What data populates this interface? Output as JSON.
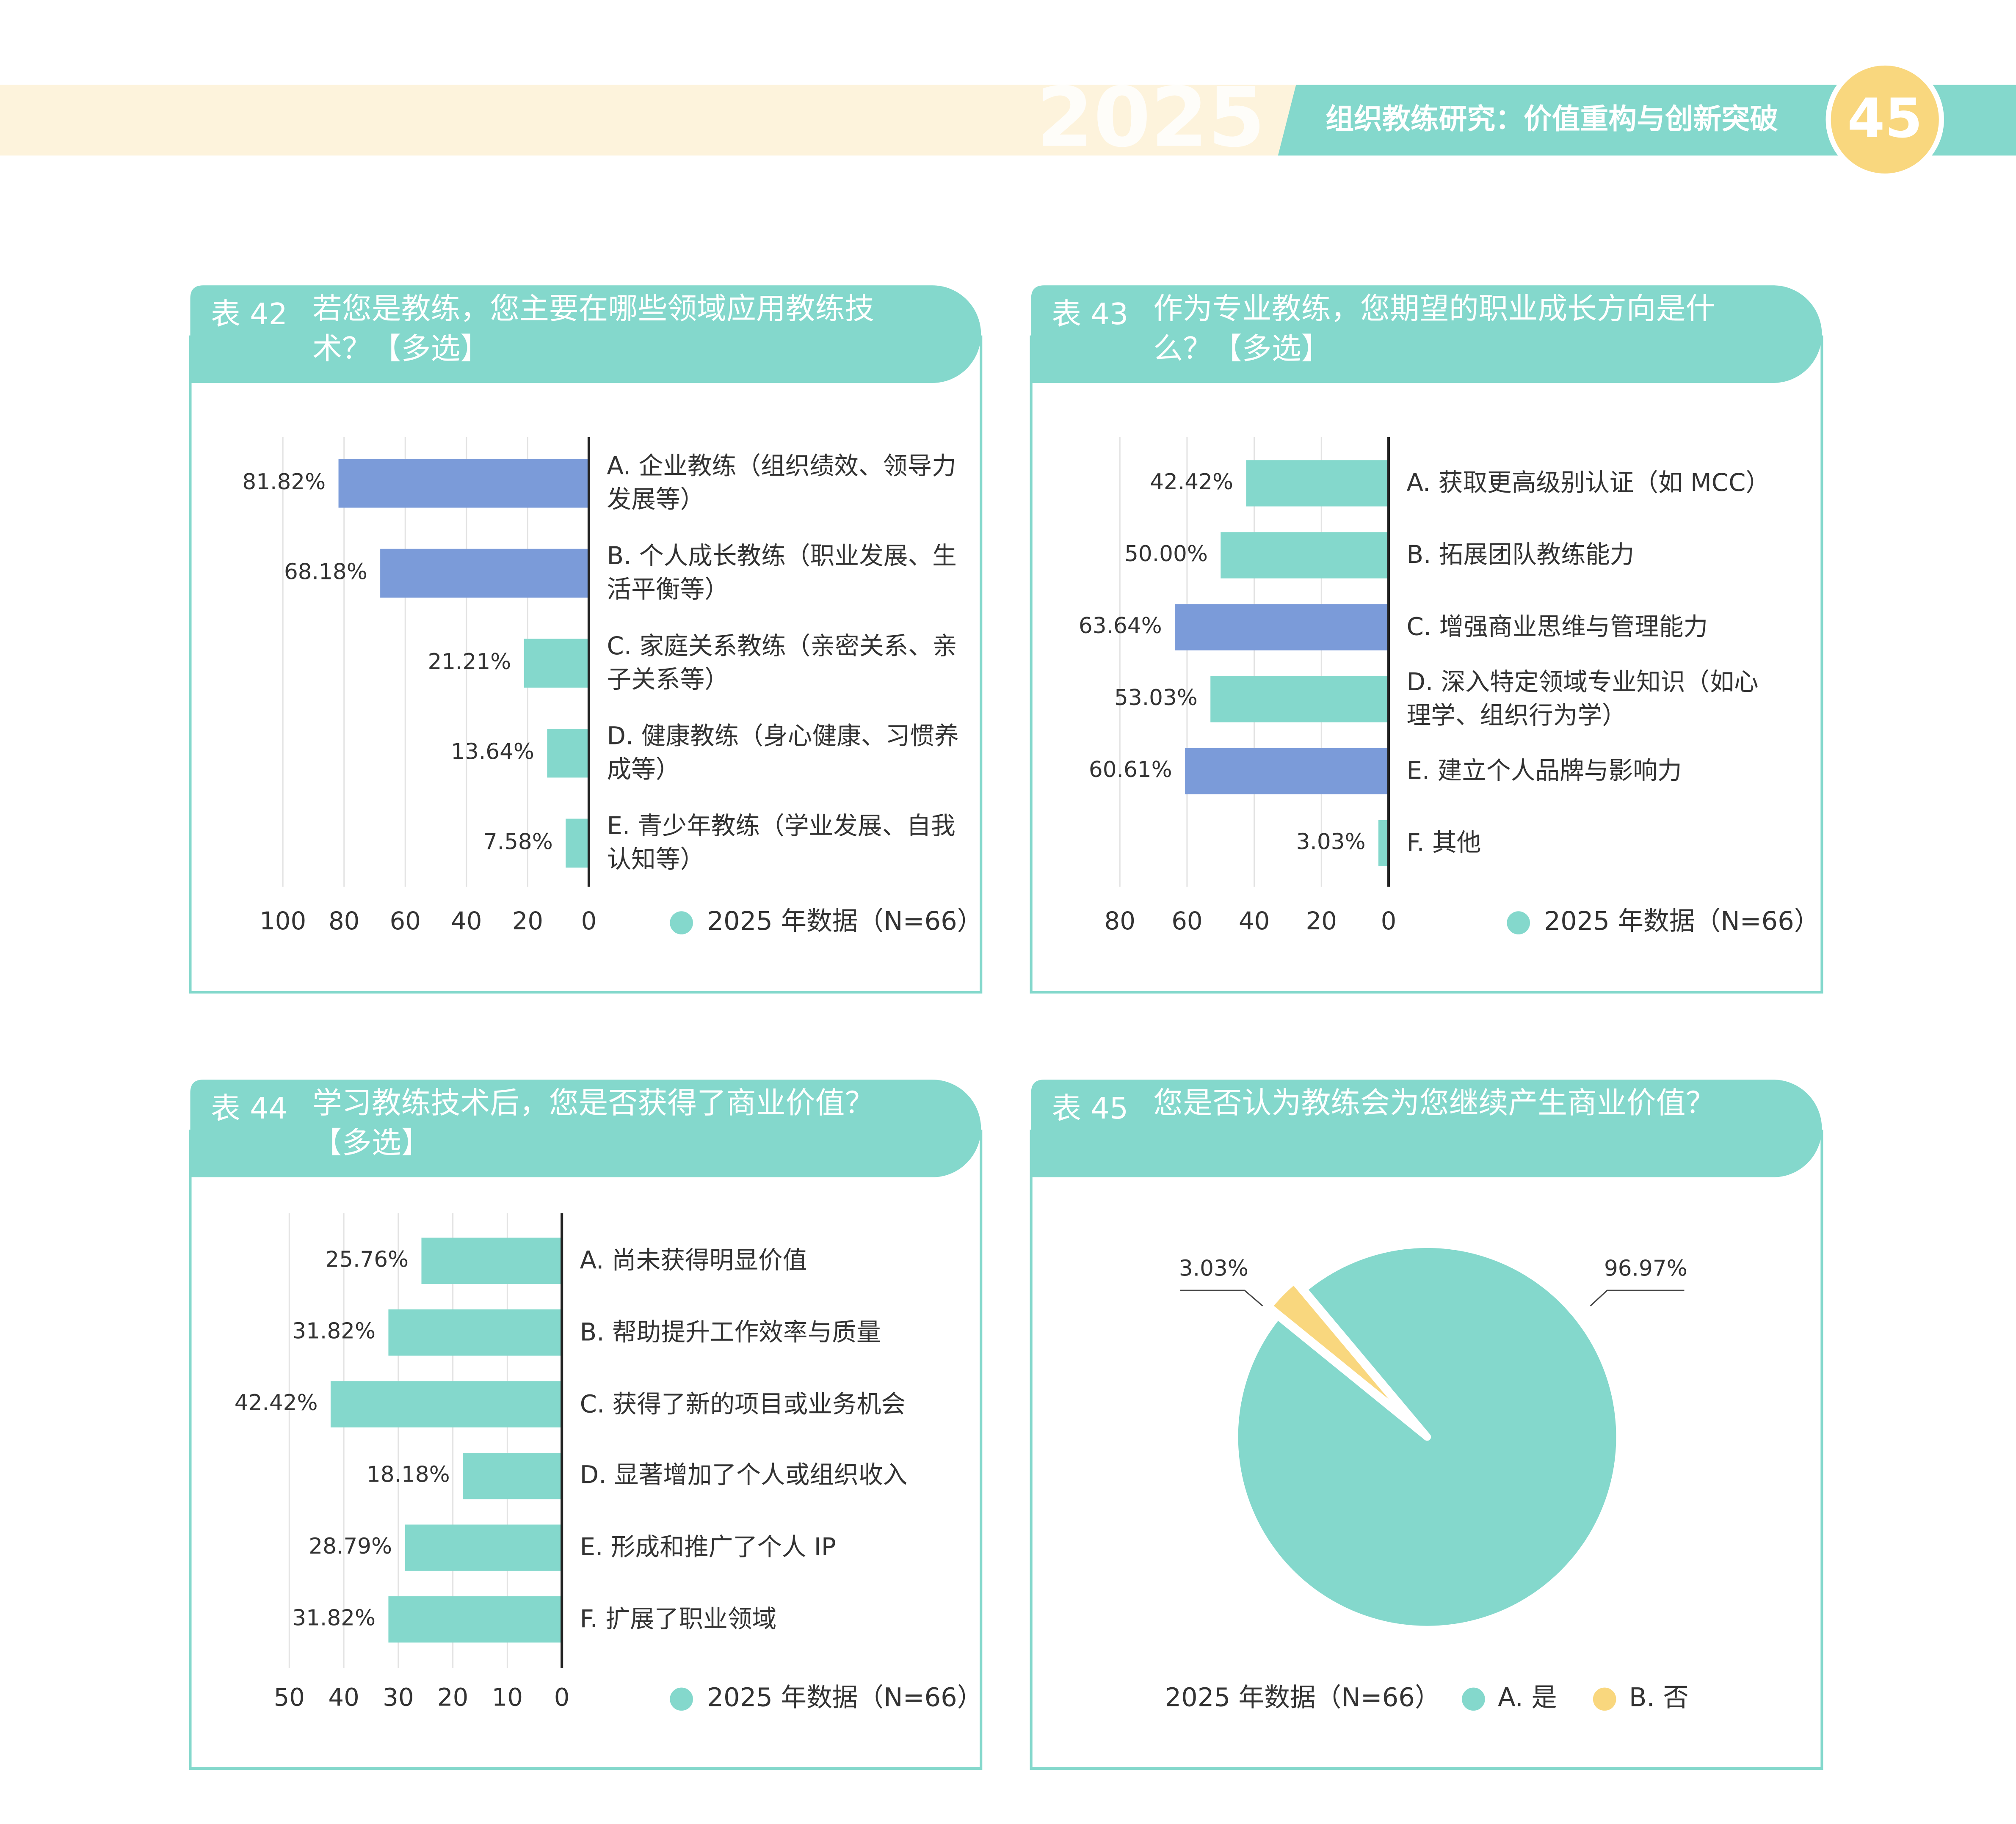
{
  "header": {
    "watermark": "2025",
    "title": "组织教练研究：价值重构与创新突破",
    "page_number": "45"
  },
  "chart_data": [
    {
      "type": "bar",
      "orientation": "horizontal",
      "number": "表 42",
      "title": "若您是教练，您主要在哪些领域应用教练技术？【多选】",
      "categories": [
        "A. 企业教练（组织绩效、领导力发展等）",
        "B. 个人成长教练（职业发展、生活平衡等）",
        "C. 家庭关系教练（亲密关系、亲子关系等）",
        "D. 健康教练（身心健康、习惯养成等）",
        "E. 青少年教练（学业发展、自我认知等）"
      ],
      "series": [
        {
          "name": "2025 年数据（N=66）",
          "color": "#84d8cc",
          "values": [
            81.82,
            68.18,
            21.21,
            13.64,
            7.58
          ],
          "value_labels": [
            "81.82%",
            "68.18%",
            "21.21%",
            "13.64%",
            "7.58%"
          ],
          "bar_colors": [
            "#7b9bd9",
            "#7b9bd9",
            "#84d8cc",
            "#84d8cc",
            "#84d8cc"
          ]
        }
      ],
      "xlim": [
        100,
        0
      ],
      "xticks": [
        100,
        80,
        60,
        40,
        20,
        0
      ],
      "grid": true
    },
    {
      "type": "bar",
      "orientation": "horizontal",
      "number": "表 43",
      "title": "作为专业教练，您期望的职业成长方向是什么？【多选】",
      "categories": [
        "A. 获取更高级别认证（如 MCC）",
        "B. 拓展团队教练能力",
        "C. 增强商业思维与管理能力",
        "D. 深入特定领域专业知识（如心理学、组织行为学）",
        "E. 建立个人品牌与影响力",
        "F. 其他"
      ],
      "series": [
        {
          "name": "2025 年数据（N=66）",
          "color": "#84d8cc",
          "values": [
            42.42,
            50.0,
            63.64,
            53.03,
            60.61,
            3.03
          ],
          "value_labels": [
            "42.42%",
            "50.00%",
            "63.64%",
            "53.03%",
            "60.61%",
            "3.03%"
          ],
          "bar_colors": [
            "#84d8cc",
            "#84d8cc",
            "#7b9bd9",
            "#84d8cc",
            "#7b9bd9",
            "#84d8cc"
          ]
        }
      ],
      "xlim": [
        80,
        0
      ],
      "xticks": [
        80,
        60,
        40,
        20,
        0
      ],
      "grid": true
    },
    {
      "type": "bar",
      "orientation": "horizontal",
      "number": "表 44",
      "title": "学习教练技术后，您是否获得了商业价值？【多选】",
      "categories": [
        "A. 尚未获得明显价值",
        "B. 帮助提升工作效率与质量",
        "C. 获得了新的项目或业务机会",
        "D. 显著增加了个人或组织收入",
        "E. 形成和推广了个人 IP",
        "F. 扩展了职业领域"
      ],
      "series": [
        {
          "name": "2025 年数据（N=66）",
          "color": "#84d8cc",
          "values": [
            25.76,
            31.82,
            42.42,
            18.18,
            28.79,
            31.82
          ],
          "value_labels": [
            "25.76%",
            "31.82%",
            "42.42%",
            "18.18%",
            "28.79%",
            "31.82%"
          ],
          "bar_colors": [
            "#84d8cc",
            "#84d8cc",
            "#84d8cc",
            "#84d8cc",
            "#84d8cc",
            "#84d8cc"
          ]
        }
      ],
      "xlim": [
        50,
        0
      ],
      "xticks": [
        50,
        40,
        30,
        20,
        10,
        0
      ],
      "grid": true
    },
    {
      "type": "pie",
      "number": "表 45",
      "title": "您是否认为教练会为您继续产生商业价值？",
      "legend_title": "2025 年数据（N=66）",
      "categories": [
        "A. 是",
        "B. 否"
      ],
      "values": [
        96.97,
        3.03
      ],
      "value_labels": [
        "96.97%",
        "3.03%"
      ],
      "colors": [
        "#84d8cc",
        "#f9d77e"
      ]
    }
  ]
}
